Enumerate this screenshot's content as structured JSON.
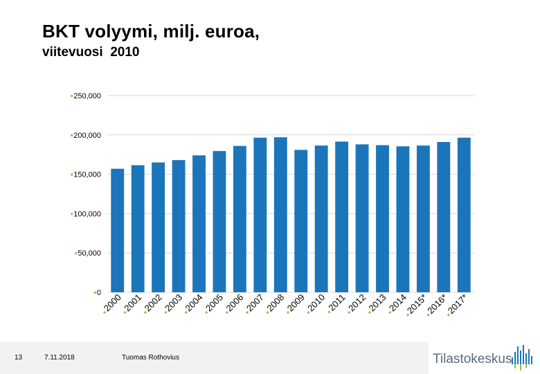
{
  "title": "BKT volyymi, milj. euroa,",
  "subtitle": "viitevuosi  2010",
  "footer": {
    "slide_number": "13",
    "date": "7.11.2018",
    "author": "Tuomas Rothovius"
  },
  "logo": {
    "name": "Tilastokeskus"
  },
  "colors": {
    "bar": "#1b75bb",
    "tick_marker": "#8dc63f",
    "grid": "#d9d9d9"
  },
  "chart_data": {
    "type": "bar",
    "title": "BKT volyymi, milj. euroa, viitevuosi 2010",
    "categories": [
      "2000",
      "2001",
      "2002",
      "2003",
      "2004",
      "2005",
      "2006",
      "2007",
      "2008",
      "2009",
      "2010",
      "2011",
      "2012",
      "2013",
      "2014",
      "2015*",
      "2016*",
      "2017*"
    ],
    "values": [
      157000,
      161500,
      165000,
      168000,
      174000,
      179500,
      186000,
      196500,
      197000,
      181000,
      186500,
      191500,
      188000,
      187000,
      185500,
      186500,
      191000,
      196500
    ],
    "ylim": [
      0,
      250000
    ],
    "yticks": [
      "250,000",
      "200,000",
      "150,000",
      "100,000",
      "50,000",
      "0"
    ],
    "ytick_values": [
      250000,
      200000,
      150000,
      100000,
      50000,
      0
    ],
    "grid": true,
    "legend": "none",
    "xlabel": "",
    "ylabel": ""
  }
}
